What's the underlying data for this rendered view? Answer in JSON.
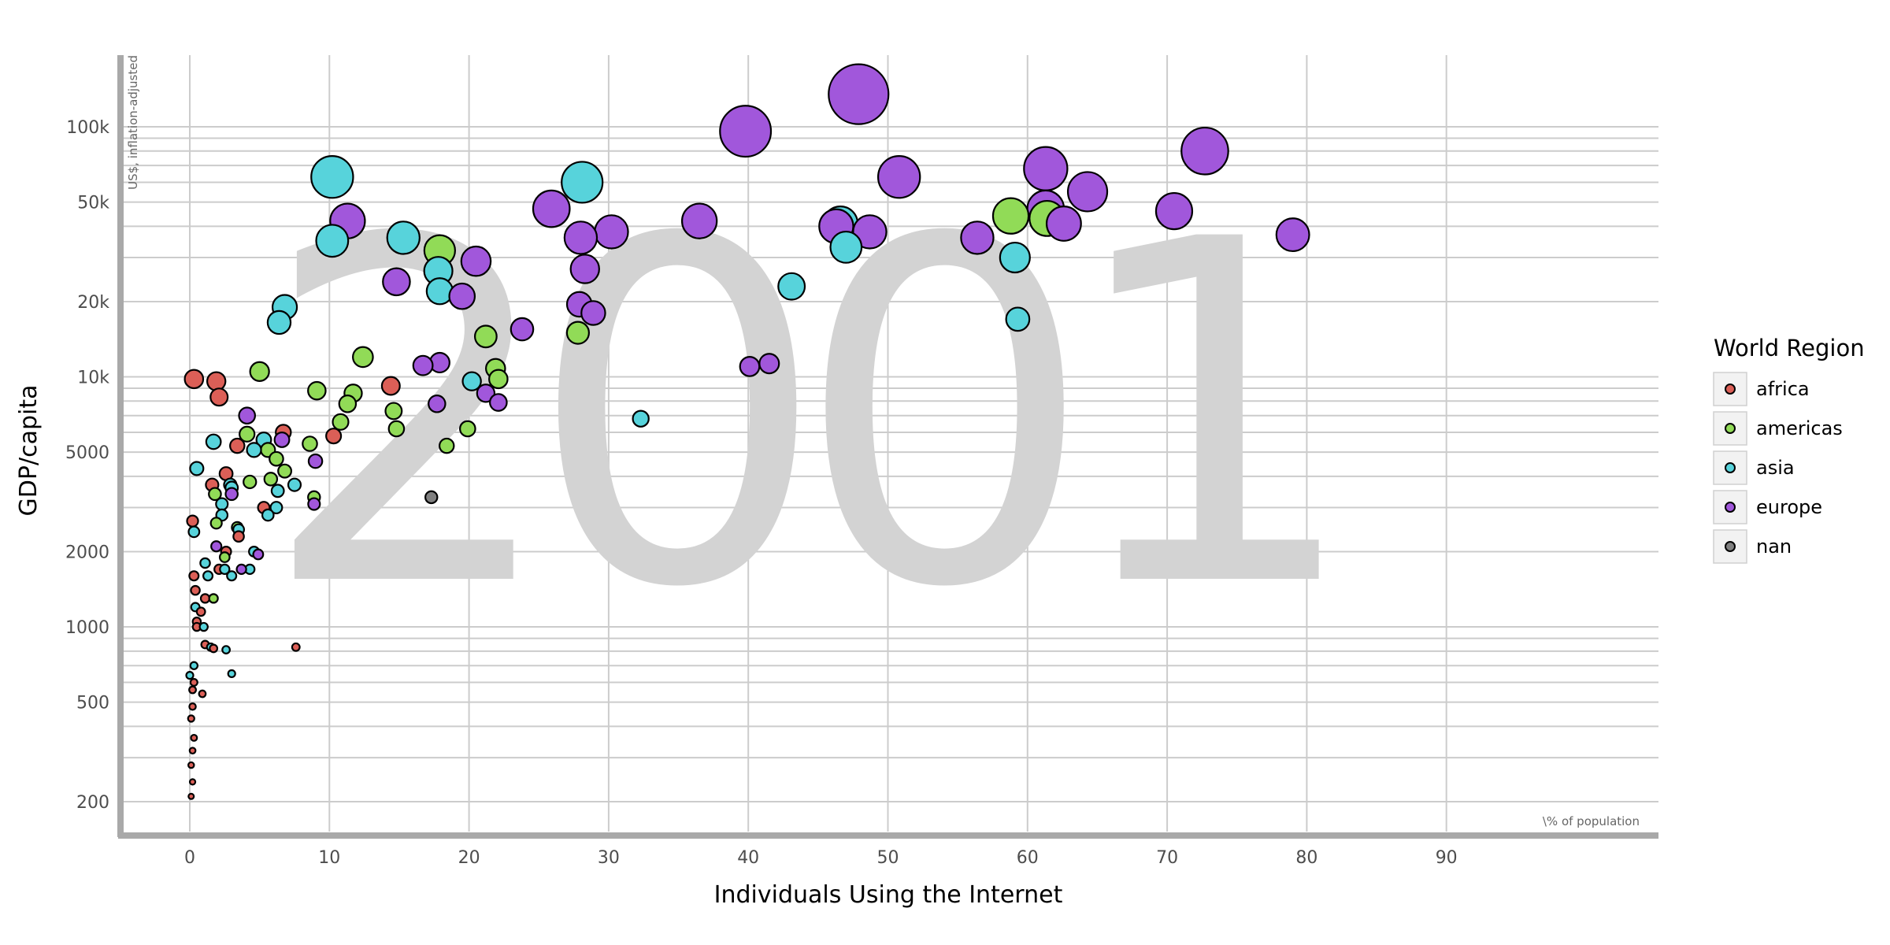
{
  "chart_data": {
    "type": "scatter",
    "year_label": "2001",
    "xlabel": "Individuals Using the Internet",
    "x_unit_note": "\\% of population",
    "ylabel": "GDP/capita",
    "y_unit_note": "US$, inflation-adjusted",
    "xlim": [
      -5,
      105
    ],
    "ylim": [
      150,
      200000
    ],
    "y_scale": "log",
    "x_ticks": [
      0,
      10,
      20,
      30,
      40,
      50,
      60,
      70,
      80,
      90
    ],
    "x_tick_labels": [
      "0",
      "10",
      "20",
      "30",
      "40",
      "50",
      "60",
      "70",
      "80",
      "90"
    ],
    "y_ticks": [
      200,
      500,
      1000,
      2000,
      5000,
      10000,
      20000,
      50000,
      100000
    ],
    "y_tick_labels": [
      "200",
      "500",
      "1000",
      "2000",
      "5000",
      "10k",
      "20k",
      "50k",
      "100k"
    ],
    "grid": true,
    "legend": {
      "title": "World Region",
      "position": "right",
      "entries": [
        {
          "label": "africa",
          "color": "#db5f57"
        },
        {
          "label": "americas",
          "color": "#91db57"
        },
        {
          "label": "asia",
          "color": "#57d3db"
        },
        {
          "label": "europe",
          "color": "#a157db"
        },
        {
          "label": "nan",
          "color": "#808080"
        }
      ]
    },
    "colors": {
      "africa": "#db5f57",
      "americas": "#91db57",
      "asia": "#57d3db",
      "europe": "#a157db",
      "nan": "#808080",
      "grid": "#cccccc",
      "year_text": "#d3d3d3",
      "axis_line": "#a9a9a9"
    },
    "point_size": "size encodes GDP/capita",
    "series": [
      {
        "name": "africa",
        "points": [
          [
            0.3,
            9800
          ],
          [
            1.9,
            9600
          ],
          [
            2.1,
            8300
          ],
          [
            14.4,
            9200
          ],
          [
            10.3,
            5800
          ],
          [
            6.7,
            6000
          ],
          [
            3.4,
            5300
          ],
          [
            1.6,
            3700
          ],
          [
            2.6,
            4100
          ],
          [
            5.3,
            3000
          ],
          [
            0.2,
            2650
          ],
          [
            2.6,
            2000
          ],
          [
            3.5,
            2300
          ],
          [
            2.1,
            1700
          ],
          [
            0.3,
            1600
          ],
          [
            0.4,
            1400
          ],
          [
            1.1,
            1300
          ],
          [
            0.8,
            1150
          ],
          [
            0.5,
            1050
          ],
          [
            0.5,
            1000
          ],
          [
            1.1,
            850
          ],
          [
            1.7,
            820
          ],
          [
            7.6,
            830
          ],
          [
            0.3,
            600
          ],
          [
            0.2,
            560
          ],
          [
            0.9,
            540
          ],
          [
            0.2,
            480
          ],
          [
            0.1,
            430
          ],
          [
            0.3,
            360
          ],
          [
            0.2,
            320
          ],
          [
            0.1,
            280
          ],
          [
            0.2,
            240
          ],
          [
            0.1,
            210
          ]
        ]
      },
      {
        "name": "americas",
        "points": [
          [
            17.9,
            32000
          ],
          [
            61.4,
            43000
          ],
          [
            58.8,
            44000
          ],
          [
            27.8,
            15000
          ],
          [
            21.2,
            14500
          ],
          [
            22.1,
            9800
          ],
          [
            21.9,
            10800
          ],
          [
            12.4,
            12000
          ],
          [
            5.0,
            10500
          ],
          [
            9.1,
            8800
          ],
          [
            11.7,
            8600
          ],
          [
            11.3,
            7800
          ],
          [
            10.8,
            6600
          ],
          [
            14.6,
            7300
          ],
          [
            14.8,
            6200
          ],
          [
            8.6,
            5400
          ],
          [
            18.4,
            5300
          ],
          [
            19.9,
            6200
          ],
          [
            4.1,
            5900
          ],
          [
            5.6,
            5100
          ],
          [
            6.2,
            4700
          ],
          [
            6.8,
            4200
          ],
          [
            4.3,
            3800
          ],
          [
            5.8,
            3900
          ],
          [
            8.9,
            3300
          ],
          [
            1.8,
            3400
          ],
          [
            3.4,
            2500
          ],
          [
            1.9,
            2600
          ],
          [
            1.7,
            1300
          ],
          [
            2.5,
            1900
          ]
        ]
      },
      {
        "name": "asia",
        "points": [
          [
            10.2,
            63000
          ],
          [
            28.1,
            60000
          ],
          [
            15.3,
            36000
          ],
          [
            10.2,
            35000
          ],
          [
            17.9,
            22000
          ],
          [
            17.8,
            26500
          ],
          [
            43.1,
            23000
          ],
          [
            6.8,
            19000
          ],
          [
            6.4,
            16500
          ],
          [
            46.6,
            41000
          ],
          [
            47.0,
            33000
          ],
          [
            59.1,
            30000
          ],
          [
            59.3,
            17000
          ],
          [
            32.3,
            6800
          ],
          [
            20.2,
            9600
          ],
          [
            5.3,
            5600
          ],
          [
            1.7,
            5500
          ],
          [
            4.6,
            5100
          ],
          [
            0.5,
            4300
          ],
          [
            6.3,
            3500
          ],
          [
            6.2,
            3000
          ],
          [
            7.5,
            3700
          ],
          [
            2.9,
            3700
          ],
          [
            3.0,
            3600
          ],
          [
            2.3,
            3100
          ],
          [
            2.3,
            2800
          ],
          [
            5.6,
            2800
          ],
          [
            0.3,
            2400
          ],
          [
            3.5,
            2450
          ],
          [
            1.1,
            1800
          ],
          [
            4.6,
            2000
          ],
          [
            1.3,
            1600
          ],
          [
            2.5,
            1700
          ],
          [
            3.0,
            1600
          ],
          [
            4.3,
            1700
          ],
          [
            0.4,
            1200
          ],
          [
            1.0,
            1000
          ],
          [
            1.5,
            830
          ],
          [
            2.6,
            810
          ],
          [
            3.0,
            650
          ],
          [
            0.3,
            700
          ],
          [
            0.0,
            640
          ]
        ]
      },
      {
        "name": "europe",
        "points": [
          [
            47.9,
            135000
          ],
          [
            39.8,
            96000
          ],
          [
            72.7,
            80000
          ],
          [
            61.3,
            68000
          ],
          [
            50.8,
            63000
          ],
          [
            64.3,
            55000
          ],
          [
            25.9,
            47000
          ],
          [
            61.3,
            47000
          ],
          [
            70.5,
            46000
          ],
          [
            11.3,
            42000
          ],
          [
            36.5,
            42000
          ],
          [
            62.6,
            41000
          ],
          [
            46.3,
            40000
          ],
          [
            48.7,
            38000
          ],
          [
            30.2,
            38000
          ],
          [
            28.0,
            36000
          ],
          [
            56.4,
            36000
          ],
          [
            79.0,
            37000
          ],
          [
            20.5,
            29000
          ],
          [
            28.3,
            27000
          ],
          [
            14.8,
            24000
          ],
          [
            19.5,
            21000
          ],
          [
            27.9,
            19500
          ],
          [
            28.9,
            18000
          ],
          [
            23.8,
            15500
          ],
          [
            40.1,
            11000
          ],
          [
            41.5,
            11300
          ],
          [
            16.7,
            11100
          ],
          [
            17.9,
            11400
          ],
          [
            21.2,
            8600
          ],
          [
            22.1,
            7900
          ],
          [
            17.7,
            7800
          ],
          [
            4.1,
            7000
          ],
          [
            6.6,
            5600
          ],
          [
            9.0,
            4600
          ],
          [
            8.9,
            3100
          ],
          [
            3.0,
            3400
          ],
          [
            1.9,
            2100
          ],
          [
            4.9,
            1950
          ],
          [
            3.7,
            1700
          ]
        ]
      },
      {
        "name": "nan",
        "points": [
          [
            17.3,
            3300
          ]
        ]
      }
    ]
  }
}
